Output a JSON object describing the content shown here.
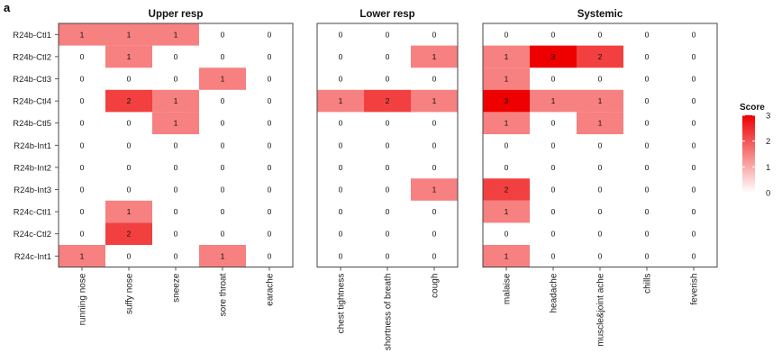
{
  "figure": {
    "panel_label": "a"
  },
  "chart_data": {
    "type": "heatmap",
    "rows": [
      "R24b-Ctl1",
      "R24b-Ctl2",
      "R24b-Ctl3",
      "R24b-Ctl4",
      "R24b-Ctl5",
      "R24b-Int1",
      "R24b-Int2",
      "R24b-Int3",
      "R24c-Ctl1",
      "R24c-Ctl2",
      "R24c-Int1"
    ],
    "facets": [
      {
        "title": "Upper resp",
        "columns": [
          "running nose",
          "suffy nose",
          "sneeze",
          "sore throat",
          "earache"
        ],
        "values": [
          [
            1,
            1,
            1,
            0,
            0
          ],
          [
            0,
            1,
            0,
            0,
            0
          ],
          [
            0,
            0,
            0,
            1,
            0
          ],
          [
            0,
            2,
            1,
            0,
            0
          ],
          [
            0,
            0,
            1,
            0,
            0
          ],
          [
            0,
            0,
            0,
            0,
            0
          ],
          [
            0,
            0,
            0,
            0,
            0
          ],
          [
            0,
            0,
            0,
            0,
            0
          ],
          [
            0,
            1,
            0,
            0,
            0
          ],
          [
            0,
            2,
            0,
            0,
            0
          ],
          [
            1,
            0,
            0,
            1,
            0
          ]
        ],
        "labels": [
          [
            "1",
            "1",
            "1",
            "0",
            "0"
          ],
          [
            "0",
            "1",
            "0",
            "0",
            "0"
          ],
          [
            "0",
            "0",
            "0",
            "1",
            "0"
          ],
          [
            "0",
            "2",
            "1",
            "0",
            "0"
          ],
          [
            "0",
            "0",
            "1",
            "0",
            "0"
          ],
          [
            "0",
            "0",
            "0",
            "0",
            "0"
          ],
          [
            "0",
            "0",
            "0",
            "0",
            "0"
          ],
          [
            "0",
            "0",
            "0",
            "0",
            "0"
          ],
          [
            "0",
            "1",
            "0",
            "0",
            "0"
          ],
          [
            "0",
            "2",
            "0",
            "0",
            "0"
          ],
          [
            "1",
            "0",
            "0",
            "1",
            "0"
          ]
        ]
      },
      {
        "title": "Lower resp",
        "columns": [
          "chest tightness",
          "shortness of breath",
          "cough"
        ],
        "values": [
          [
            0,
            0,
            0
          ],
          [
            0,
            0,
            1
          ],
          [
            0,
            0,
            0
          ],
          [
            1,
            2,
            1
          ],
          [
            0,
            0,
            0
          ],
          [
            0,
            0,
            0
          ],
          [
            0,
            0,
            0
          ],
          [
            0,
            0,
            1
          ],
          [
            0,
            0,
            0
          ],
          [
            0,
            0,
            0
          ],
          [
            0,
            0,
            0
          ]
        ],
        "labels": [
          [
            "0",
            "0",
            "0"
          ],
          [
            "0",
            "0",
            "1"
          ],
          [
            "0",
            "0",
            "0"
          ],
          [
            "1",
            "2",
            "1"
          ],
          [
            "0",
            "0",
            "0"
          ],
          [
            "0",
            "0",
            "0"
          ],
          [
            "0",
            "0",
            "0"
          ],
          [
            "0",
            "0",
            "1"
          ],
          [
            "0",
            "0",
            "0"
          ],
          [
            "0",
            "0",
            "0"
          ],
          [
            "0",
            "0",
            "0"
          ]
        ]
      },
      {
        "title": "Systemic",
        "columns": [
          "malaise",
          "headache",
          "muscle&joint ache",
          "chills",
          "feverish"
        ],
        "values": [
          [
            0,
            0,
            0,
            0,
            0
          ],
          [
            1,
            3,
            2,
            0,
            0
          ],
          [
            1,
            0,
            0,
            0,
            0
          ],
          [
            3,
            1,
            1,
            0,
            0
          ],
          [
            1,
            0,
            1,
            0,
            0
          ],
          [
            0,
            0,
            0,
            0,
            0
          ],
          [
            0,
            0,
            0,
            0,
            0
          ],
          [
            2,
            0,
            0,
            0,
            0
          ],
          [
            1,
            0,
            0,
            0,
            0
          ],
          [
            0,
            0,
            0,
            0,
            0
          ],
          [
            1,
            0,
            0,
            0,
            0
          ]
        ],
        "labels": [
          [
            "0",
            "0",
            "0",
            "0",
            "0"
          ],
          [
            "1",
            "3",
            "2",
            "0",
            "0"
          ],
          [
            "1",
            "0",
            "0",
            "0",
            "0"
          ],
          [
            "3",
            "1",
            "1",
            "0",
            "0"
          ],
          [
            "1",
            "0",
            "1",
            "0",
            "0"
          ],
          [
            "0",
            "0",
            "0",
            "0",
            "0"
          ],
          [
            "0",
            "0",
            "0",
            "0",
            "0"
          ],
          [
            "2",
            "0",
            "0",
            "0",
            "0"
          ],
          [
            "1",
            "0",
            "0",
            "0",
            "0"
          ],
          [
            "0",
            "0",
            "0",
            "0",
            "0"
          ],
          [
            "1",
            "0",
            "0",
            "0",
            "0"
          ]
        ]
      }
    ],
    "legend": {
      "title": "Score",
      "ticks": [
        3,
        2,
        1,
        0
      ],
      "tick_labels": [
        "3",
        "2",
        "1",
        "0"
      ],
      "range": [
        0,
        3
      ],
      "low_color": "#ffffff",
      "high_color": "#ee0000"
    }
  }
}
